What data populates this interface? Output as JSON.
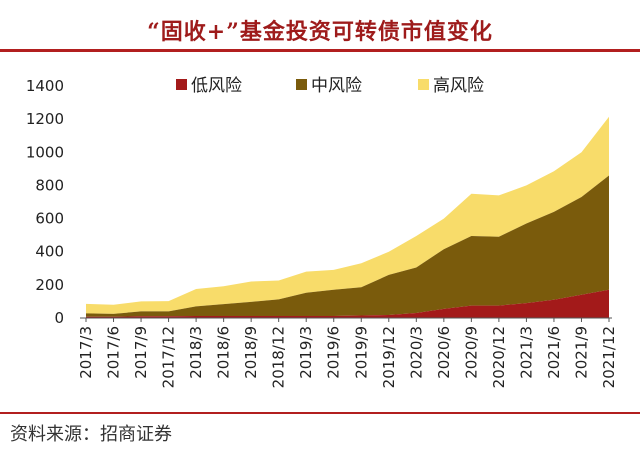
{
  "title": "“固收+”基金投资可转债市值变化",
  "source": "资料来源：招商证券",
  "chart_data": {
    "type": "area",
    "stacked": true,
    "title": "“固收+”基金投资可转债市值变化",
    "xlabel": "",
    "ylabel": "",
    "ylim": [
      0,
      1400
    ],
    "yticks": [
      0,
      200,
      400,
      600,
      800,
      1000,
      1200,
      1400
    ],
    "grid": false,
    "legend_position": "top",
    "x": [
      "2017/3",
      "2017/6",
      "2017/9",
      "2017/12",
      "2018/3",
      "2018/6",
      "2018/9",
      "2018/12",
      "2019/3",
      "2019/6",
      "2019/9",
      "2019/12",
      "2020/3",
      "2020/6",
      "2020/9",
      "2020/12",
      "2021/3",
      "2021/6",
      "2021/9",
      "2021/12"
    ],
    "series": [
      {
        "name": "低风险",
        "color": "#a31a1a",
        "values": [
          8,
          8,
          10,
          10,
          12,
          12,
          12,
          12,
          12,
          12,
          15,
          18,
          30,
          55,
          75,
          75,
          90,
          110,
          140,
          170
        ]
      },
      {
        "name": "中风险",
        "color": "#7a5b0c",
        "values": [
          20,
          17,
          30,
          30,
          58,
          72,
          85,
          100,
          140,
          158,
          170,
          242,
          275,
          360,
          420,
          415,
          480,
          530,
          590,
          690
        ]
      },
      {
        "name": "高风险",
        "color": "#f8dc6a",
        "values": [
          57,
          55,
          60,
          62,
          105,
          108,
          123,
          114,
          128,
          120,
          145,
          140,
          190,
          185,
          255,
          250,
          230,
          245,
          270,
          355
        ]
      }
    ]
  }
}
